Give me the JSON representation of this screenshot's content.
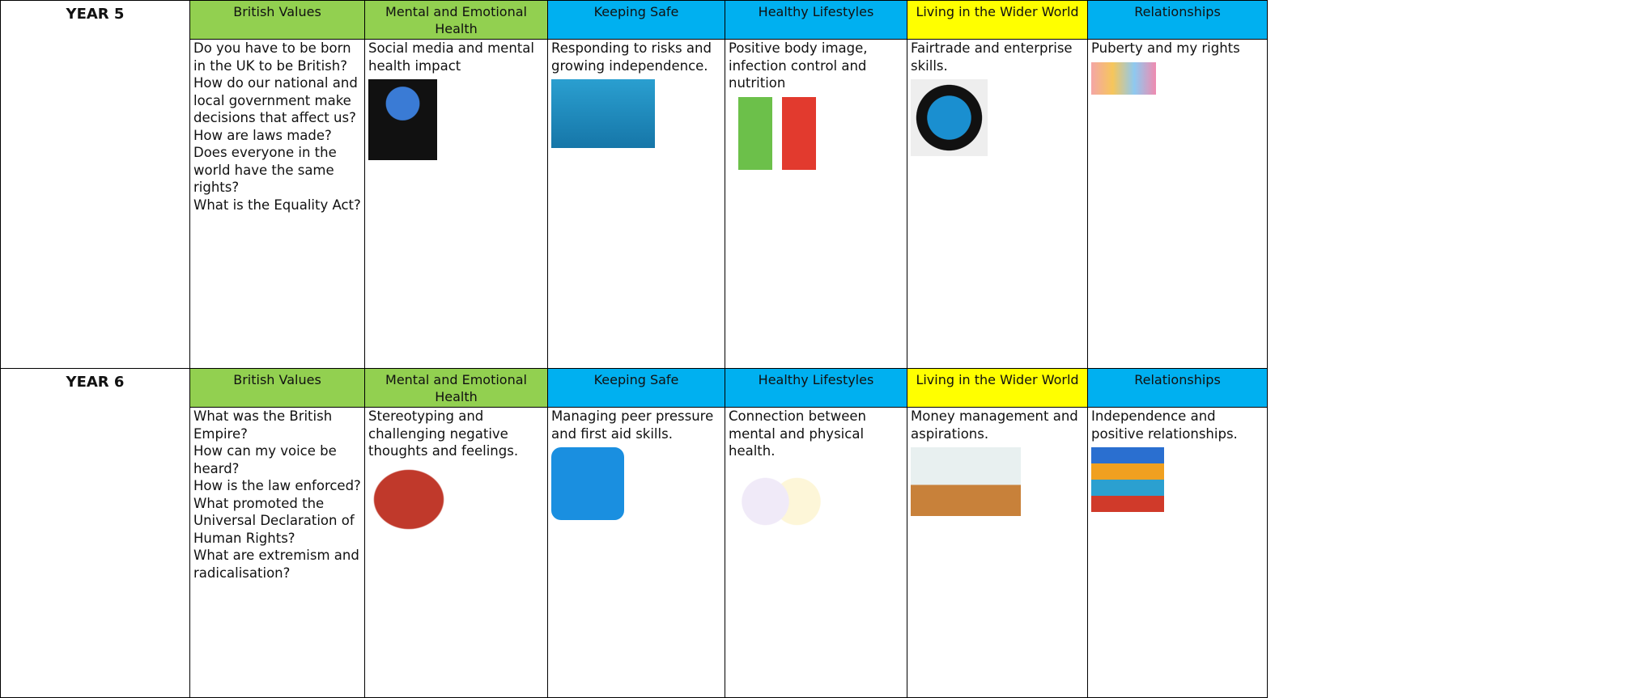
{
  "rows": [
    {
      "year": "YEAR 5",
      "topics": [
        {
          "heading": "British Values",
          "content": [
            "Do you have to be born in the UK to be British?",
            "How do our national and local government make decisions that affect us?",
            "How are laws made?",
            "Does everyone in the world have the same rights?",
            "What is the Equality Act?"
          ]
        },
        {
          "heading": "Mental and Emotional Health",
          "content": [
            "Social media and mental health impact"
          ]
        },
        {
          "heading": "Keeping Safe",
          "content": [
            "Responding to risks and growing independence."
          ]
        },
        {
          "heading": "Healthy Lifestyles",
          "content": [
            "Positive body image, infection control and nutrition"
          ]
        },
        {
          "heading": "Living in the Wider World",
          "content": [
            "Fairtrade and enterprise skills."
          ]
        },
        {
          "heading": "Relationships",
          "content": [
            "Puberty and my rights"
          ]
        }
      ]
    },
    {
      "year": "YEAR 6",
      "topics": [
        {
          "heading": "British Values",
          "content": [
            "What was the British Empire?",
            "How can my voice be heard?",
            "How is the law enforced?",
            "What promoted the Universal Declaration of Human Rights?",
            "What are extremism and radicalisation?"
          ]
        },
        {
          "heading": "Mental and Emotional Health",
          "content": [
            "Stereotyping and challenging negative thoughts and feelings."
          ]
        },
        {
          "heading": "Keeping Safe",
          "content": [
            "Managing peer pressure and first aid skills."
          ]
        },
        {
          "heading": "Healthy Lifestyles",
          "content": [
            "Connection between mental and physical health."
          ]
        },
        {
          "heading": "Living in the Wider World",
          "content": [
            "Money management and aspirations."
          ]
        },
        {
          "heading": "Relationships",
          "content": [
            "Independence and positive relationships."
          ]
        }
      ]
    }
  ]
}
